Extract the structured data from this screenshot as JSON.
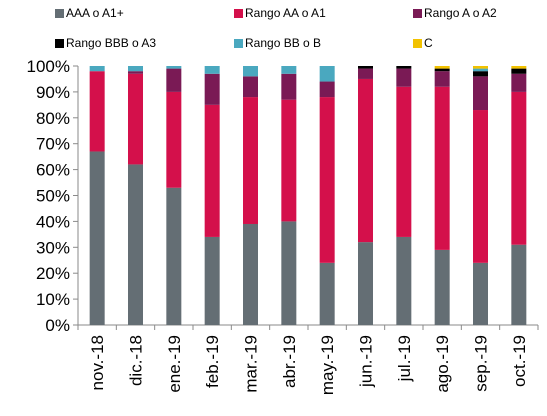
{
  "chart_data": {
    "type": "bar",
    "stacked": true,
    "categories": [
      "nov.-18",
      "dic.-18",
      "ene.-19",
      "feb.-19",
      "mar.-19",
      "abr.-19",
      "may.-19",
      "jun.-19",
      "jul.-19",
      "ago.-19",
      "sep.-19",
      "oct.-19"
    ],
    "series": [
      {
        "name": "AAA o A1+",
        "color": "#646e74",
        "values": [
          67,
          62,
          53,
          34,
          39,
          40,
          24,
          32,
          34,
          29,
          24,
          31
        ]
      },
      {
        "name": "Rango AA o A1",
        "color": "#d4104b",
        "values": [
          31,
          35,
          37,
          51,
          49,
          47,
          64,
          63,
          58,
          63,
          59,
          59
        ]
      },
      {
        "name": "Rango A o A2",
        "color": "#7a1a55",
        "values": [
          0,
          1,
          9,
          12,
          8,
          10,
          6,
          4,
          7,
          6,
          13,
          7
        ]
      },
      {
        "name": "Rango BBB o A3",
        "color": "#000000",
        "values": [
          0,
          0,
          0,
          0,
          0,
          0,
          0,
          1,
          1,
          1,
          2,
          2
        ]
      },
      {
        "name": "Rango BB o B",
        "color": "#4aa8bf",
        "values": [
          2,
          2,
          1,
          3,
          4,
          3,
          6,
          0,
          0,
          0,
          1,
          0
        ]
      },
      {
        "name": "C",
        "color": "#f2c200",
        "values": [
          0,
          0,
          0,
          0,
          0,
          0,
          0,
          0,
          0,
          1,
          1,
          1
        ]
      }
    ],
    "y_ticks": [
      "0%",
      "10%",
      "20%",
      "30%",
      "40%",
      "50%",
      "60%",
      "70%",
      "80%",
      "90%",
      "100%"
    ],
    "ylim": [
      0,
      100
    ],
    "grid": false,
    "legend_position": "top"
  }
}
